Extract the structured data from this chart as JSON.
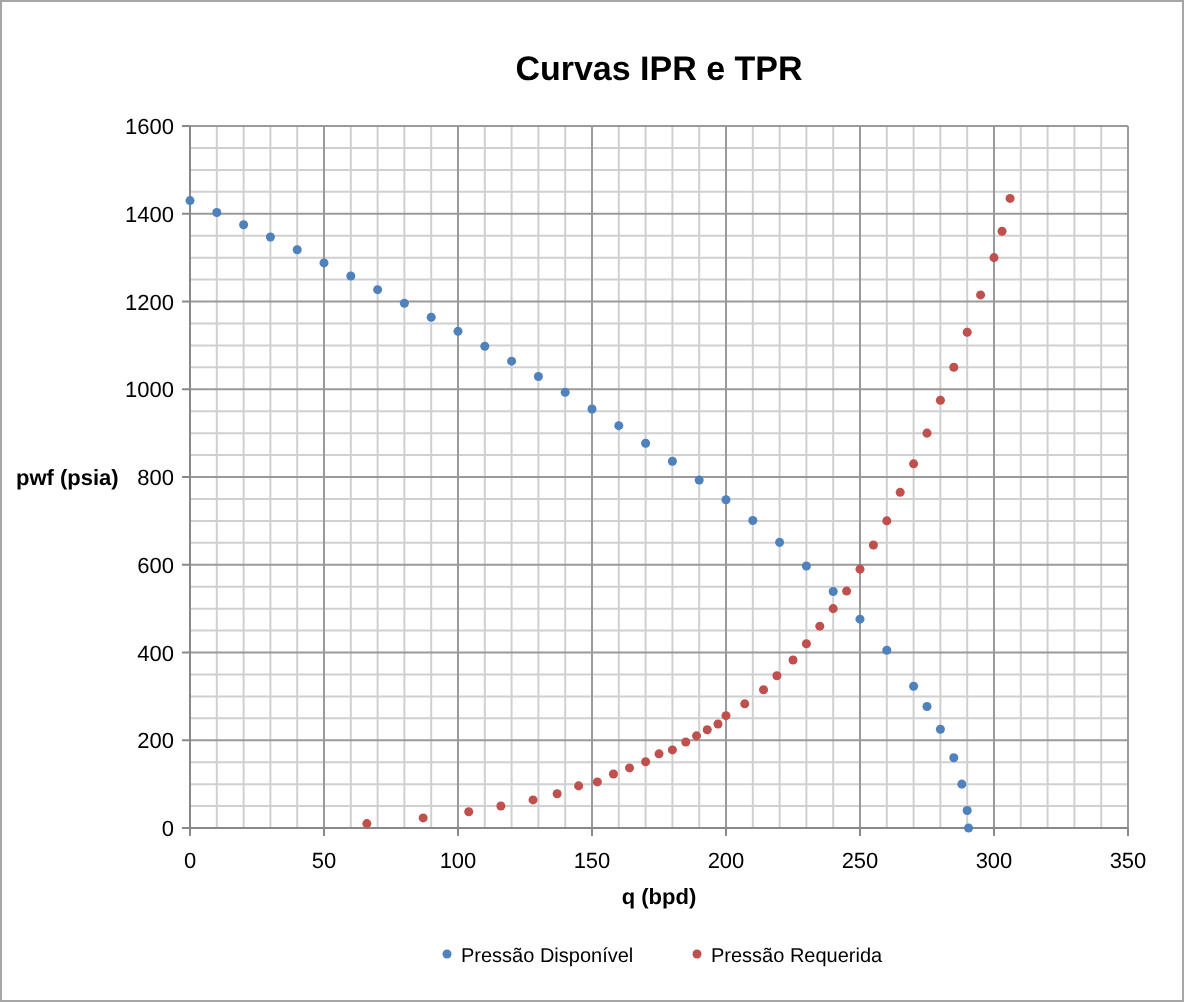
{
  "chart_data": {
    "type": "scatter",
    "title": "Curvas IPR e TPR",
    "xlabel": "q (bpd)",
    "ylabel": "pwf (psia)",
    "xlim": [
      0,
      350
    ],
    "xticks": [
      0,
      50,
      100,
      150,
      200,
      250,
      300,
      350
    ],
    "ylim": [
      0,
      1600
    ],
    "yticks": [
      0,
      200,
      400,
      600,
      800,
      1000,
      1200,
      1400,
      1600
    ],
    "grid": true,
    "legend": "bottom",
    "marker": "circle",
    "series": [
      {
        "name": "Pressão Disponível",
        "color": "#4f81bd",
        "x": [
          0,
          10,
          20,
          30,
          40,
          50,
          60,
          70,
          80,
          90,
          100,
          110,
          120,
          130,
          140,
          150,
          160,
          170,
          180,
          190,
          200,
          210,
          220,
          230,
          240,
          250,
          260,
          270,
          275,
          280,
          285,
          288,
          290,
          290.5
        ],
        "values": [
          1430,
          1403,
          1375,
          1347,
          1318,
          1288,
          1258,
          1227,
          1196,
          1164,
          1132,
          1098,
          1064,
          1029,
          993,
          955,
          917,
          877,
          836,
          793,
          748,
          701,
          651,
          597,
          539,
          476,
          405,
          323,
          277,
          225,
          160,
          100,
          40,
          0
        ]
      },
      {
        "name": "Pressão Requerida",
        "color": "#c0504d",
        "x": [
          66,
          87,
          104,
          116,
          128,
          137,
          145,
          152,
          158,
          164,
          170,
          175,
          180,
          185,
          189,
          193,
          197,
          200,
          207,
          214,
          219,
          225,
          230,
          235,
          240,
          245,
          250,
          255,
          260,
          265,
          270,
          275,
          280,
          285,
          290,
          295,
          300,
          303,
          306
        ],
        "values": [
          10,
          23,
          37,
          50,
          64,
          78,
          96,
          105,
          123,
          137,
          151,
          169,
          178,
          196,
          210,
          224,
          237,
          256,
          283,
          315,
          347,
          383,
          420,
          460,
          500,
          540,
          590,
          645,
          700,
          765,
          830,
          900,
          975,
          1050,
          1130,
          1215,
          1300,
          1360,
          1435
        ]
      }
    ]
  }
}
